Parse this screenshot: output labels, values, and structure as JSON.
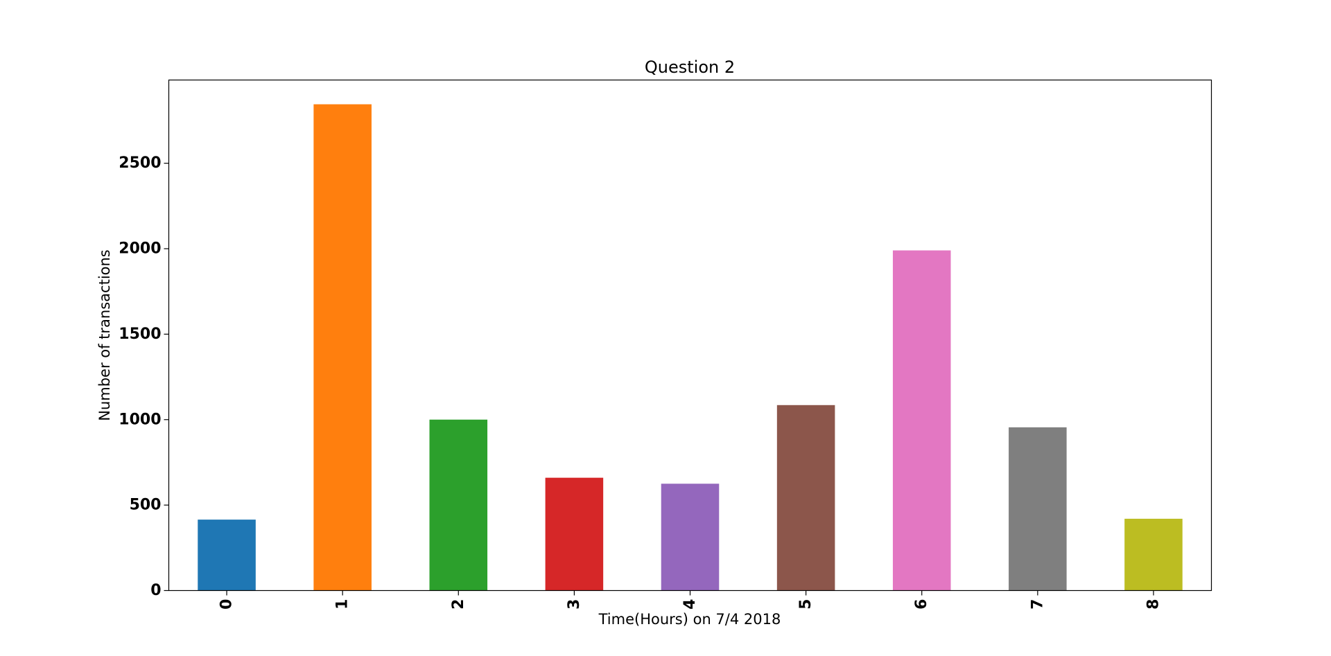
{
  "chart_data": {
    "type": "bar",
    "title": "Question 2",
    "xlabel": "Time(Hours) on 7/4 2018",
    "ylabel": "Number of transactions",
    "categories": [
      "0",
      "1",
      "2",
      "3",
      "4",
      "5",
      "6",
      "7",
      "8"
    ],
    "values": [
      415,
      2845,
      1000,
      660,
      625,
      1085,
      1990,
      955,
      420
    ],
    "colors": [
      "#1f77b4",
      "#ff7f0e",
      "#2ca02c",
      "#d62728",
      "#9467bd",
      "#8c564b",
      "#e377c2",
      "#7f7f7f",
      "#bcbd22"
    ],
    "ylim": [
      0,
      2987
    ],
    "yticks": [
      0,
      500,
      1000,
      1500,
      2000,
      2500
    ],
    "grid": false,
    "legend": "none"
  }
}
